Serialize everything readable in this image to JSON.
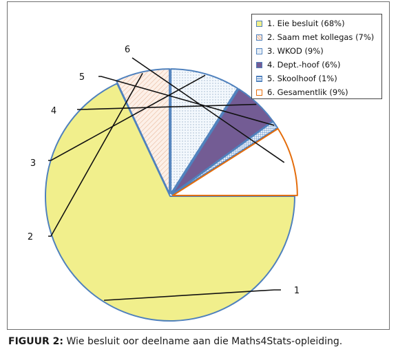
{
  "caption": {
    "label": "FIGUUR 2:",
    "text": "Wie besluit oor deelname aan die Maths4Stats-opleiding."
  },
  "chart_data": {
    "type": "pie",
    "title": "",
    "slices": [
      {
        "id": "1",
        "name": "1. Eie besluit (68%)",
        "value": 68,
        "fill": "#f1ef8c",
        "stroke": "#4f81bd",
        "pattern": "solid"
      },
      {
        "id": "2",
        "name": "2. Saam met kollegas (7%)",
        "value": 7,
        "fill": "#fbe9df",
        "stroke": "#4f81bd",
        "pattern": "hatch"
      },
      {
        "id": "3",
        "name": "3. WKOD (9%)",
        "value": 9,
        "fill": "#eef4fb",
        "stroke": "#4f81bd",
        "pattern": "dots"
      },
      {
        "id": "4",
        "name": "4. Dept.-hoof (6%)",
        "value": 6,
        "fill": "#735c94",
        "stroke": "#4f81bd",
        "pattern": "solid"
      },
      {
        "id": "5",
        "name": "5. Skoolhoof (1%)",
        "value": 1,
        "fill": "#dce6f2",
        "stroke": "#4f81bd",
        "pattern": "grid"
      },
      {
        "id": "6",
        "name": "6. Gesamentlik (9%)",
        "value": 9,
        "fill": "#ffffff",
        "stroke": "#e46c0a",
        "pattern": "solid"
      }
    ],
    "legend_position": "top-right"
  }
}
